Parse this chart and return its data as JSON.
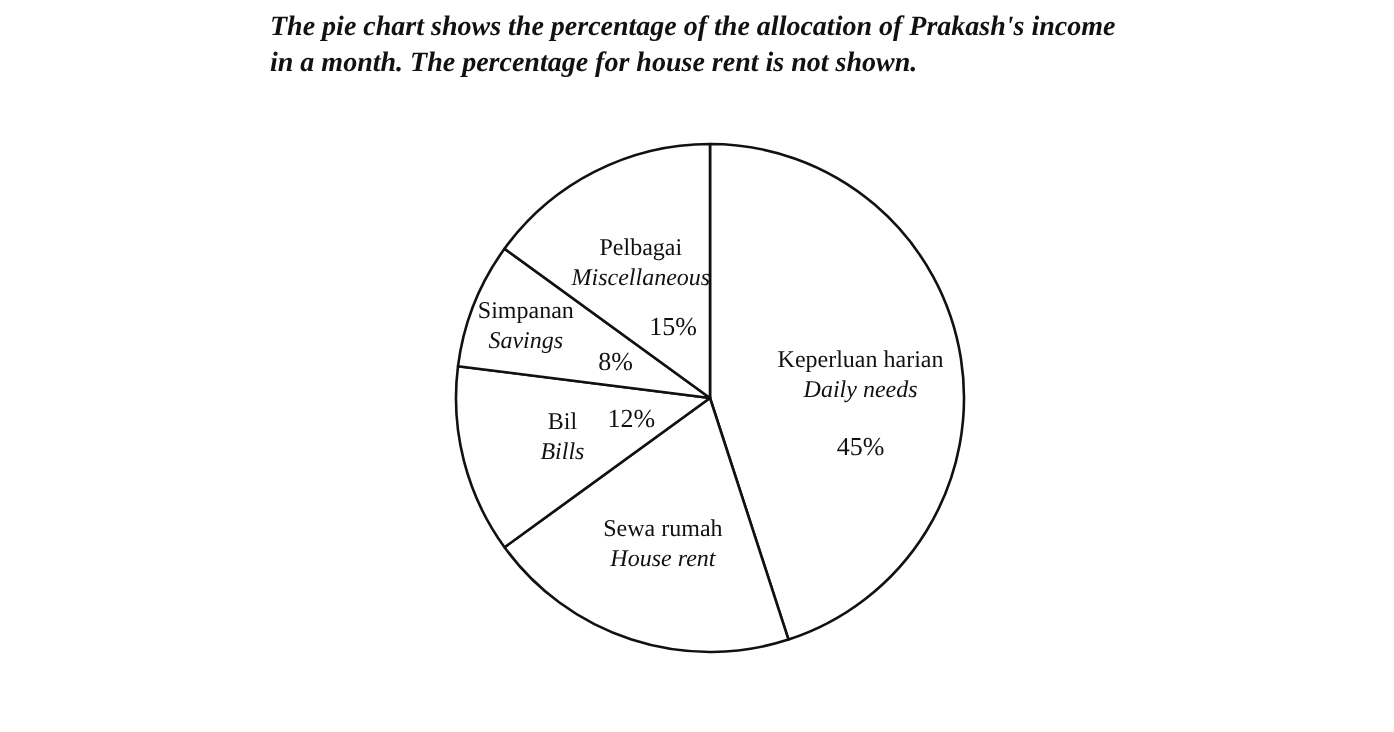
{
  "chart_data": {
    "type": "pie",
    "title": "The pie chart shows the percentage of the allocation of Prakash's income\nin a month. The percentage for house rent is not shown.",
    "categories": [
      "Keperluan harian\nDaily needs",
      "Sewa rumah\nHouse rent",
      "Bil\nBills",
      "Simpanan\nSavings",
      "Pelbagai\nMiscellaneous"
    ],
    "values": [
      45,
      20,
      12,
      8,
      15
    ],
    "colors": [
      "#ffffff",
      "#ffffff",
      "#ffffff",
      "#ffffff",
      "#ffffff"
    ],
    "value_labels": [
      "45%",
      null,
      "12%",
      "8%",
      "15%"
    ]
  }
}
